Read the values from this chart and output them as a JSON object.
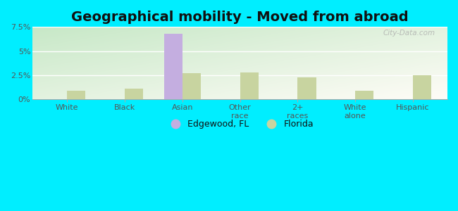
{
  "title": "Geographical mobility - Moved from abroad",
  "categories": [
    "White",
    "Black",
    "Asian",
    "Other\nrace",
    "2+\nraces",
    "White\nalone",
    "Hispanic"
  ],
  "edgewood_values": [
    0.0,
    0.0,
    6.8,
    0.0,
    0.0,
    0.0,
    0.0
  ],
  "florida_values": [
    0.9,
    1.1,
    2.7,
    2.75,
    2.3,
    0.85,
    2.5
  ],
  "edgewood_color": "#c4aee0",
  "florida_color": "#c8d4a0",
  "ylim": [
    0,
    7.5
  ],
  "yticks": [
    0,
    2.5,
    5.0,
    7.5
  ],
  "ytick_labels": [
    "0%",
    "2.5%",
    "5%",
    "7.5%"
  ],
  "cyan_bg": "#00eeff",
  "title_fontsize": 14,
  "bar_width": 0.32,
  "legend_edgewood": "Edgewood, FL",
  "legend_florida": "Florida",
  "watermark": "City-Data.com",
  "grad_top_left": "#c8e8c8",
  "grad_bottom_right": "#e8f8ee"
}
